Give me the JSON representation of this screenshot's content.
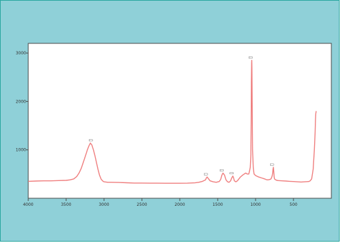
{
  "chart_data": {
    "type": "line",
    "title": "",
    "xlabel": "",
    "ylabel": "",
    "x_reversed": true,
    "xlim": [
      4000,
      0
    ],
    "ylim": [
      0,
      3200
    ],
    "x_ticks": [
      {
        "value": 4000,
        "label": "4000"
      },
      {
        "value": 3500,
        "label": "3500"
      },
      {
        "value": 3000,
        "label": "3000"
      },
      {
        "value": 2500,
        "label": "2500"
      },
      {
        "value": 2000,
        "label": "2000"
      },
      {
        "value": 1500,
        "label": "1500"
      },
      {
        "value": 1000,
        "label": "1000"
      },
      {
        "value": 500,
        "label": "500"
      }
    ],
    "y_ticks": [
      {
        "value": 1000,
        "label": "1000"
      },
      {
        "value": 2000,
        "label": "2000"
      },
      {
        "value": 3000,
        "label": "3000"
      }
    ],
    "grid": false,
    "line_color": "#ef7f7f",
    "series": [
      {
        "x": [
          4000,
          3900,
          3800,
          3700,
          3600,
          3500,
          3450,
          3400,
          3360,
          3330,
          3300,
          3270,
          3240,
          3220,
          3200,
          3180,
          3160,
          3140,
          3120,
          3100,
          3080,
          3060,
          3040,
          3020,
          3000,
          2950,
          2900,
          2800,
          2700,
          2600,
          2500,
          2400,
          2300,
          2200,
          2100,
          2000,
          1900,
          1800,
          1750,
          1700,
          1660,
          1650,
          1640,
          1620,
          1600,
          1560,
          1520,
          1480,
          1460,
          1445,
          1430,
          1410,
          1390,
          1370,
          1350,
          1330,
          1315,
          1300,
          1290,
          1280,
          1260,
          1240,
          1200,
          1170,
          1150,
          1130,
          1110,
          1090,
          1080,
          1070,
          1062,
          1058,
          1055,
          1052,
          1050,
          1048,
          1045,
          1040,
          1030,
          1020,
          1000,
          960,
          920,
          880,
          860,
          840,
          820,
          800,
          790,
          780,
          775,
          770,
          765,
          760,
          755,
          750,
          740,
          720,
          700,
          650,
          600,
          550,
          500,
          450,
          400,
          350,
          300,
          280,
          260,
          240,
          225,
          215,
          210,
          205,
          200
        ],
        "y": [
          350,
          355,
          360,
          360,
          365,
          370,
          380,
          400,
          450,
          520,
          620,
          760,
          900,
          1000,
          1080,
          1140,
          1100,
          1000,
          880,
          740,
          600,
          480,
          400,
          360,
          340,
          330,
          330,
          325,
          320,
          315,
          315,
          312,
          312,
          310,
          310,
          310,
          312,
          318,
          330,
          350,
          380,
          420,
          440,
          400,
          360,
          340,
          330,
          345,
          390,
          480,
          520,
          480,
          380,
          340,
          330,
          360,
          420,
          460,
          420,
          360,
          340,
          360,
          440,
          480,
          500,
          520,
          500,
          500,
          560,
          640,
          900,
          1600,
          2400,
          2800,
          2850,
          2700,
          1900,
          1000,
          620,
          500,
          470,
          440,
          420,
          400,
          385,
          380,
          385,
          395,
          420,
          470,
          520,
          600,
          640,
          560,
          450,
          400,
          385,
          370,
          365,
          360,
          355,
          350,
          345,
          340,
          335,
          340,
          345,
          360,
          400,
          600,
          1000,
          1350,
          1600,
          1750,
          1800
        ]
      }
    ],
    "annotations": [
      {
        "x": 3160,
        "y": 1140,
        "label": "▯"
      },
      {
        "x": 1640,
        "y": 440,
        "label": "▯"
      },
      {
        "x": 1430,
        "y": 520,
        "label": "▯"
      },
      {
        "x": 1300,
        "y": 460,
        "label": "▯"
      },
      {
        "x": 1050,
        "y": 2850,
        "label": "▯"
      },
      {
        "x": 770,
        "y": 640,
        "label": "▯"
      }
    ]
  }
}
